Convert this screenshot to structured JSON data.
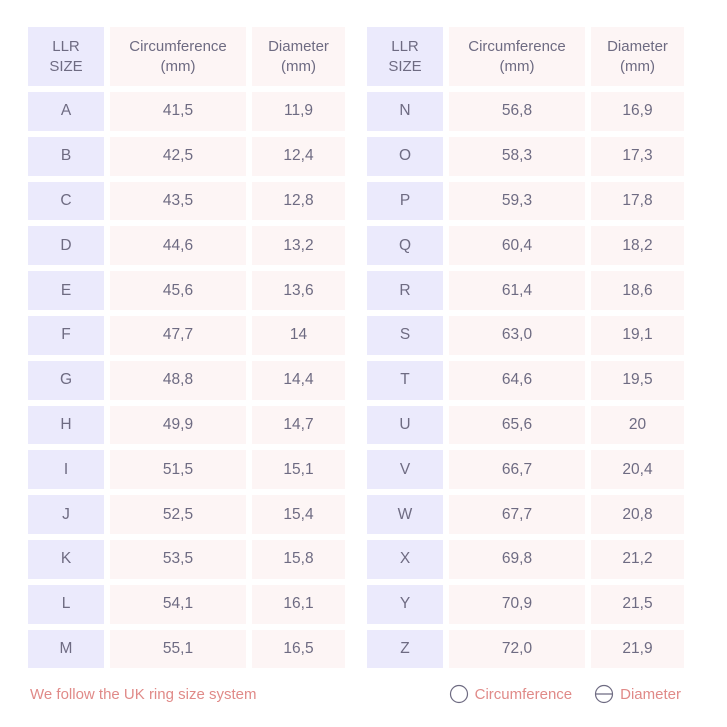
{
  "headers": {
    "size": [
      "LLR",
      "SIZE"
    ],
    "circumference": [
      "Circumference",
      "(mm)"
    ],
    "diameter": [
      "Diameter",
      "(mm)"
    ]
  },
  "left_rows": [
    {
      "size": "A",
      "circumference": "41,5",
      "diameter": "11,9"
    },
    {
      "size": "B",
      "circumference": "42,5",
      "diameter": "12,4"
    },
    {
      "size": "C",
      "circumference": "43,5",
      "diameter": "12,8"
    },
    {
      "size": "D",
      "circumference": "44,6",
      "diameter": "13,2"
    },
    {
      "size": "E",
      "circumference": "45,6",
      "diameter": "13,6"
    },
    {
      "size": "F",
      "circumference": "47,7",
      "diameter": "14"
    },
    {
      "size": "G",
      "circumference": "48,8",
      "diameter": "14,4"
    },
    {
      "size": "H",
      "circumference": "49,9",
      "diameter": "14,7"
    },
    {
      "size": "I",
      "circumference": "51,5",
      "diameter": "15,1"
    },
    {
      "size": "J",
      "circumference": "52,5",
      "diameter": "15,4"
    },
    {
      "size": "K",
      "circumference": "53,5",
      "diameter": "15,8"
    },
    {
      "size": "L",
      "circumference": "54,1",
      "diameter": "16,1"
    },
    {
      "size": "M",
      "circumference": "55,1",
      "diameter": "16,5"
    }
  ],
  "right_rows": [
    {
      "size": "N",
      "circumference": "56,8",
      "diameter": "16,9"
    },
    {
      "size": "O",
      "circumference": "58,3",
      "diameter": "17,3"
    },
    {
      "size": "P",
      "circumference": "59,3",
      "diameter": "17,8"
    },
    {
      "size": "Q",
      "circumference": "60,4",
      "diameter": "18,2"
    },
    {
      "size": "R",
      "circumference": "61,4",
      "diameter": "18,6"
    },
    {
      "size": "S",
      "circumference": "63,0",
      "diameter": "19,1"
    },
    {
      "size": "T",
      "circumference": "64,6",
      "diameter": "19,5"
    },
    {
      "size": "U",
      "circumference": "65,6",
      "diameter": "20"
    },
    {
      "size": "V",
      "circumference": "66,7",
      "diameter": "20,4"
    },
    {
      "size": "W",
      "circumference": "67,7",
      "diameter": "20,8"
    },
    {
      "size": "X",
      "circumference": "69,8",
      "diameter": "21,2"
    },
    {
      "size": "Y",
      "circumference": "70,9",
      "diameter": "21,5"
    },
    {
      "size": "Z",
      "circumference": "72,0",
      "diameter": "21,9"
    }
  ],
  "footer": {
    "note": "We follow the UK ring size system",
    "legend_circumference": "Circumference",
    "legend_diameter": "Diameter",
    "circumference_icon": "circle-icon",
    "diameter_icon": "circle-with-diameter-line-icon"
  },
  "colors": {
    "size_column_bg": "#ebeafc",
    "value_column_bg": "#fdf5f5",
    "text": "#6e6b82",
    "footer_text": "#e08a88"
  }
}
